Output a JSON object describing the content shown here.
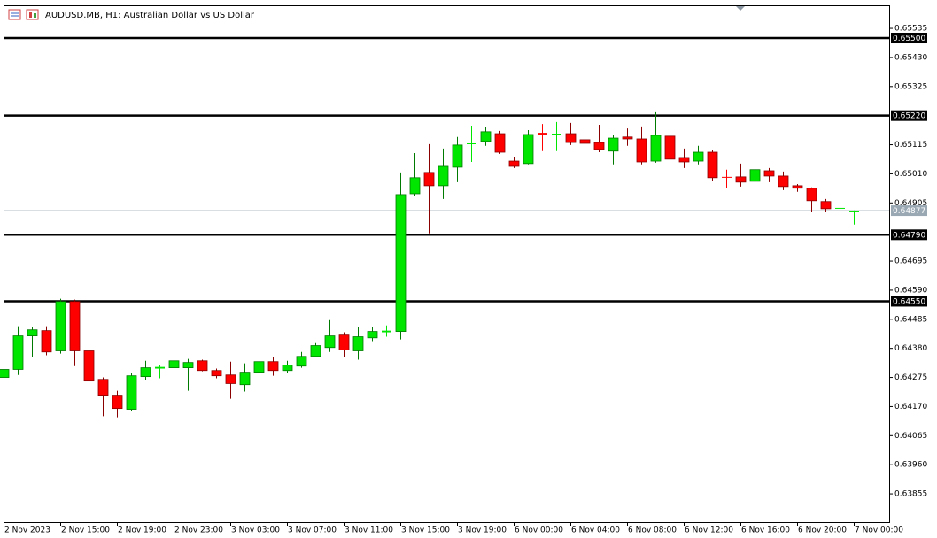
{
  "chart_data": {
    "type": "candlestick",
    "title": "AUDUSD.MB, H1:  Australian Dollar vs US Dollar",
    "categories": [
      "2 Nov 2023",
      null,
      null,
      null,
      "2 Nov 15:00",
      null,
      null,
      null,
      "2 Nov 19:00",
      null,
      null,
      null,
      "2 Nov 23:00",
      null,
      null,
      null,
      "3 Nov 03:00",
      null,
      null,
      null,
      "3 Nov 07:00",
      null,
      null,
      null,
      "3 Nov 11:00",
      null,
      null,
      null,
      "3 Nov 15:00",
      null,
      null,
      null,
      "3 Nov 19:00",
      null,
      null,
      null,
      "6 Nov 00:00",
      null,
      null,
      null,
      "6 Nov 04:00",
      null,
      null,
      null,
      "6 Nov 08:00",
      null,
      null,
      null,
      "6 Nov 12:00",
      null,
      null,
      null,
      "6 Nov 16:00",
      null,
      null,
      null,
      "6 Nov 20:00",
      null,
      null,
      null,
      "7 Nov 00:00"
    ],
    "open": [
      0.64275,
      0.64304,
      0.64425,
      0.64444,
      0.64371,
      0.64549,
      0.64371,
      0.64268,
      0.64211,
      0.6416,
      0.64278,
      0.64307,
      0.6431,
      0.6431,
      0.64335,
      0.643,
      0.64284,
      0.64249,
      0.64294,
      0.64332,
      0.643,
      0.64316,
      0.64351,
      0.64383,
      0.64428,
      0.64371,
      0.64418,
      0.64438,
      0.64441,
      0.64938,
      0.65015,
      0.64967,
      0.65034,
      0.65117,
      0.65127,
      0.65155,
      0.65056,
      0.65047,
      0.65158,
      0.65152,
      0.65155,
      0.65133,
      0.65123,
      0.65092,
      0.65143,
      0.65136,
      0.65056,
      0.65146,
      0.65069,
      0.65056,
      0.65088,
      0.64999,
      0.64999,
      0.64983,
      0.65021,
      0.65002,
      0.64967,
      0.64958,
      0.6491,
      0.64884,
      0.64871
    ],
    "high": [
      0.64313,
      0.6446,
      0.64457,
      0.6446,
      0.64559,
      0.64556,
      0.64383,
      0.64275,
      0.64227,
      0.64291,
      0.64335,
      0.6432,
      0.64345,
      0.64342,
      0.64339,
      0.64307,
      0.64332,
      0.64326,
      0.64393,
      0.64348,
      0.64335,
      0.64367,
      0.64399,
      0.64482,
      0.64438,
      0.64457,
      0.64457,
      0.64463,
      0.65015,
      0.65085,
      0.65117,
      0.65101,
      0.65143,
      0.65184,
      0.65178,
      0.65165,
      0.65072,
      0.65168,
      0.6519,
      0.65197,
      0.65194,
      0.65152,
      0.65187,
      0.65149,
      0.65174,
      0.65181,
      0.65232,
      0.65194,
      0.65101,
      0.65111,
      0.65095,
      0.65025,
      0.65047,
      0.65072,
      0.65031,
      0.65018,
      0.64973,
      0.64961,
      0.64919,
      0.64897,
      0.64878
    ],
    "low": [
      0.64272,
      0.64284,
      0.64348,
      0.64355,
      0.64361,
      0.64316,
      0.64176,
      0.64135,
      0.64131,
      0.64154,
      0.64265,
      0.64272,
      0.64304,
      0.64227,
      0.64297,
      0.64272,
      0.64198,
      0.64224,
      0.64284,
      0.64281,
      0.64291,
      0.6431,
      0.64348,
      0.64367,
      0.64348,
      0.64339,
      0.64406,
      0.64422,
      0.64412,
      0.64929,
      0.64795,
      0.64919,
      0.6498,
      0.65053,
      0.65111,
      0.65082,
      0.65031,
      0.65044,
      0.65092,
      0.65092,
      0.65114,
      0.65111,
      0.65088,
      0.65044,
      0.65111,
      0.65044,
      0.6505,
      0.65053,
      0.65031,
      0.65044,
      0.64986,
      0.64958,
      0.64964,
      0.64932,
      0.6498,
      0.64951,
      0.64945,
      0.64871,
      0.64871,
      0.64852,
      0.64827
    ],
    "close": [
      0.64304,
      0.64425,
      0.64447,
      0.64367,
      0.64549,
      0.64371,
      0.64262,
      0.64211,
      0.64163,
      0.64281,
      0.6431,
      0.64313,
      0.64335,
      0.64329,
      0.643,
      0.64281,
      0.64253,
      0.64294,
      0.64332,
      0.643,
      0.6432,
      0.64351,
      0.6439,
      0.64425,
      0.64374,
      0.64422,
      0.64441,
      0.64444,
      0.64935,
      0.64996,
      0.64967,
      0.65037,
      0.65114,
      0.6512,
      0.65162,
      0.65088,
      0.65037,
      0.65152,
      0.65152,
      0.65155,
      0.65123,
      0.6512,
      0.65098,
      0.65139,
      0.65136,
      0.65053,
      0.65149,
      0.65063,
      0.65053,
      0.65088,
      0.64996,
      0.64996,
      0.6498,
      0.65025,
      0.65002,
      0.64964,
      0.64958,
      0.64913,
      0.64884,
      0.64887,
      0.64877
    ],
    "up_color": "#00e600",
    "down_color": "#ff0000",
    "ylim": [
      0.63753,
      0.65615
    ],
    "yticks": [
      0.65535,
      {
        "value": 0.6543,
        "label": "0.65430"
      },
      0.65325,
      0.65115,
      {
        "value": 0.6501,
        "label": "0.65010"
      },
      0.64905,
      0.64695,
      {
        "value": 0.6459,
        "label": "0.64590"
      },
      0.64485,
      {
        "value": 0.6438,
        "label": "0.64380"
      },
      0.64275,
      {
        "value": 0.6417,
        "label": "0.64170"
      },
      0.64065,
      {
        "value": 0.6396,
        "label": "0.63960"
      },
      0.63855
    ],
    "levels": [
      {
        "value": 0.655,
        "label": "0.65500"
      },
      {
        "value": 0.6522,
        "label": "0.65220"
      },
      {
        "value": 0.6479,
        "label": "0.64790"
      },
      {
        "value": 0.6455,
        "label": "0.64550"
      }
    ],
    "level_color": "#000000",
    "last_price": {
      "value": 0.64877,
      "label": "0.64877"
    },
    "last_price_color": "#9aa8b4",
    "grid": false
  }
}
